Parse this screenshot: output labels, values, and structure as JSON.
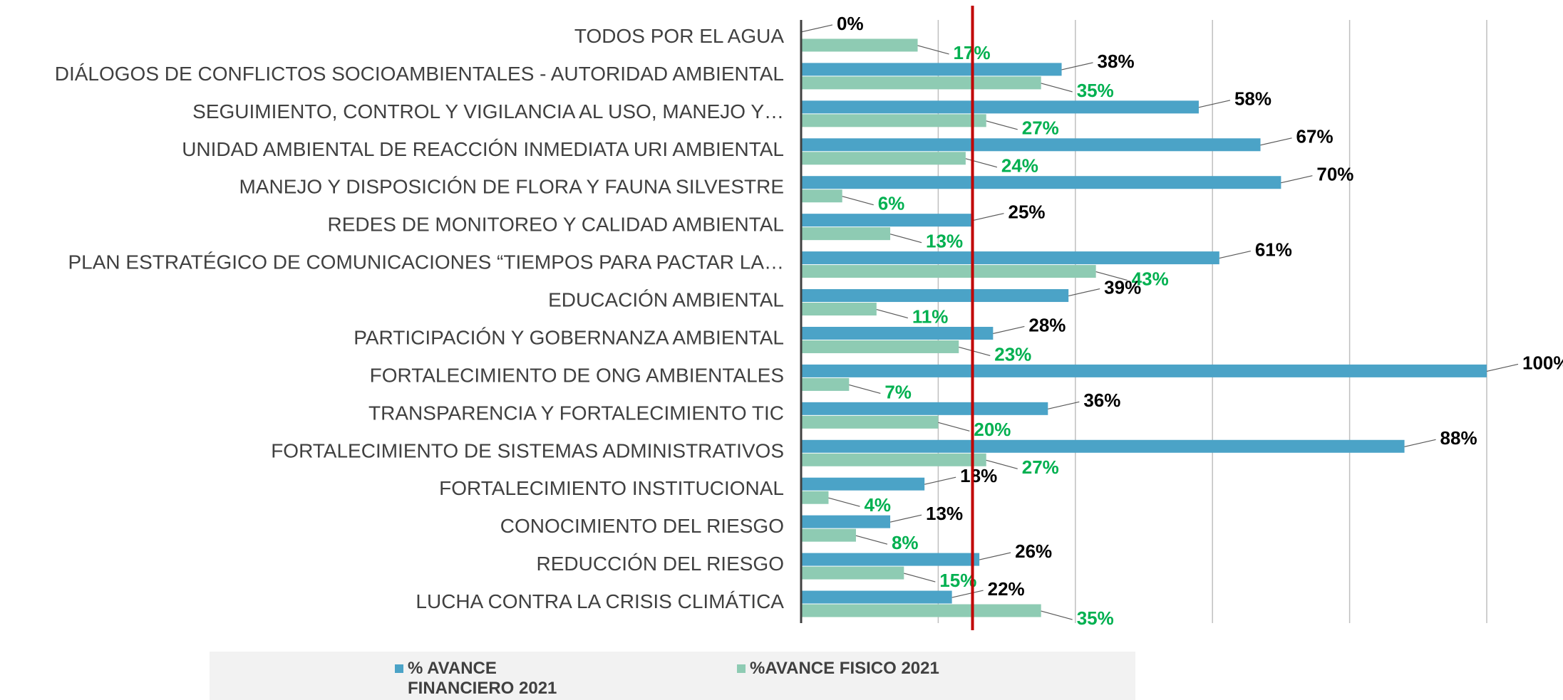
{
  "chart_data": {
    "type": "bar",
    "orientation": "horizontal",
    "categories": [
      "TODOS POR EL AGUA",
      "DIÁLOGOS DE CONFLICTOS SOCIOAMBIENTALES - AUTORIDAD AMBIENTAL",
      "SEGUIMIENTO, CONTROL Y VIGILANCIA AL USO, MANEJO Y…",
      "UNIDAD AMBIENTAL DE REACCIÓN INMEDIATA URI AMBIENTAL",
      "MANEJO Y DISPOSICIÓN DE FLORA Y FAUNA SILVESTRE",
      "REDES DE MONITOREO Y CALIDAD AMBIENTAL",
      "PLAN ESTRATÉGICO DE COMUNICACIONES “TIEMPOS PARA PACTAR LA…",
      "EDUCACIÓN AMBIENTAL",
      "PARTICIPACIÓN Y GOBERNANZA AMBIENTAL",
      "FORTALECIMIENTO DE ONG AMBIENTALES",
      "TRANSPARENCIA Y FORTALECIMIENTO TIC",
      "FORTALECIMIENTO DE SISTEMAS ADMINISTRATIVOS",
      "FORTALECIMIENTO INSTITUCIONAL",
      "CONOCIMIENTO DEL RIESGO",
      "REDUCCIÓN DEL RIESGO",
      "LUCHA CONTRA LA CRISIS CLIMÁTICA"
    ],
    "series": [
      {
        "name": "% AVANCE FINANCIERO 2021",
        "color": "#4ba3c7",
        "label_color": "#000000",
        "values": [
          0,
          38,
          58,
          67,
          70,
          25,
          61,
          39,
          28,
          100,
          36,
          88,
          18,
          13,
          26,
          22
        ],
        "value_labels": [
          "0%",
          "38%",
          "58%",
          "67%",
          "70%",
          "25%",
          "61%",
          "39%",
          "28%",
          "100%",
          "36%",
          "88%",
          "18%",
          "13%",
          "26%",
          "22%"
        ]
      },
      {
        "name": "%AVANCE FISICO 2021",
        "color": "#8ecbb3",
        "label_color": "#00b050",
        "values": [
          17,
          35,
          27,
          24,
          6,
          13,
          43,
          11,
          23,
          7,
          20,
          27,
          4,
          8,
          15,
          35
        ],
        "value_labels": [
          "17%",
          "35%",
          "27%",
          "24%",
          "6%",
          "13%",
          "43%",
          "11%",
          "23%",
          "7%",
          "20%",
          "27%",
          "4%",
          "8%",
          "15%",
          "35%"
        ]
      }
    ],
    "xlim": [
      0,
      100
    ],
    "xticks": [
      0,
      20,
      40,
      60,
      80,
      100
    ],
    "grid": true,
    "reference_line": 25,
    "reference_color": "#c00000",
    "legend": "bottom"
  }
}
